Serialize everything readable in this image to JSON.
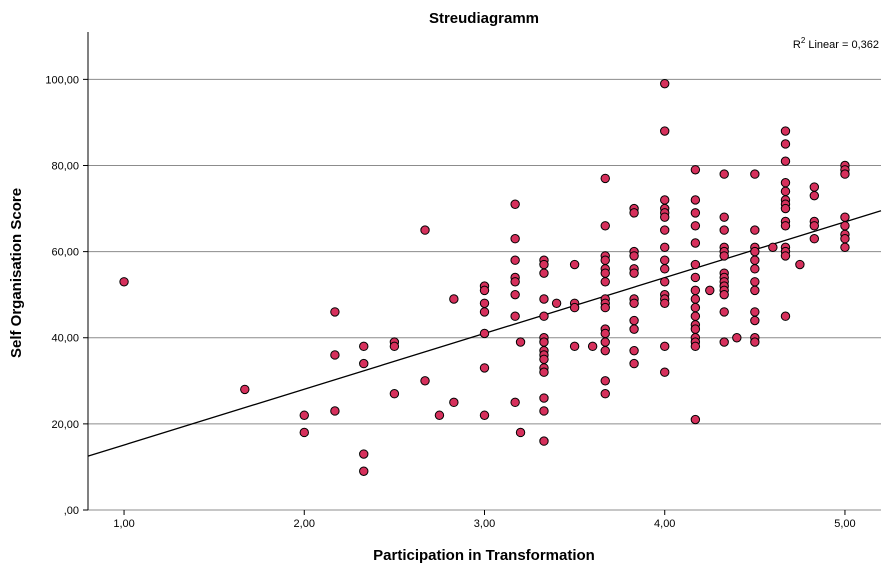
{
  "chart_data": {
    "type": "scatter",
    "title": "Streudiagramm",
    "xlabel": "Participation in Transformation",
    "ylabel": "Self Organisation Score",
    "xlim": [
      0.8,
      5.2
    ],
    "ylim": [
      0,
      111
    ],
    "x_ticks": [
      1,
      2,
      3,
      4,
      5
    ],
    "x_tick_labels": [
      "1,00",
      "2,00",
      "3,00",
      "4,00",
      "5,00"
    ],
    "y_ticks": [
      0,
      20,
      40,
      60,
      80,
      100
    ],
    "y_tick_labels": [
      ",00",
      "20,00",
      "40,00",
      "60,00",
      "80,00",
      "100,00"
    ],
    "grid": "horizontal",
    "fit_line": {
      "type": "linear",
      "x": [
        0.8,
        5.2
      ],
      "y": [
        12.5,
        69.5
      ],
      "label_prefix": "R",
      "label_sup": "2",
      "label_text": " Linear = 0,362"
    },
    "point_color": "#d6305c",
    "point_stroke": "#000000",
    "points": [
      [
        1.0,
        53
      ],
      [
        1.67,
        28
      ],
      [
        2.0,
        22
      ],
      [
        2.0,
        18
      ],
      [
        2.17,
        46
      ],
      [
        2.17,
        36
      ],
      [
        2.17,
        23
      ],
      [
        2.33,
        38
      ],
      [
        2.33,
        34
      ],
      [
        2.33,
        13
      ],
      [
        2.33,
        9
      ],
      [
        2.5,
        39
      ],
      [
        2.5,
        38
      ],
      [
        2.5,
        27
      ],
      [
        2.67,
        65
      ],
      [
        2.67,
        30
      ],
      [
        2.75,
        22
      ],
      [
        2.83,
        49
      ],
      [
        2.83,
        25
      ],
      [
        3.0,
        52
      ],
      [
        3.0,
        51
      ],
      [
        3.0,
        48
      ],
      [
        3.0,
        46
      ],
      [
        3.0,
        41
      ],
      [
        3.0,
        33
      ],
      [
        3.0,
        22
      ],
      [
        3.17,
        71
      ],
      [
        3.17,
        63
      ],
      [
        3.17,
        58
      ],
      [
        3.17,
        54
      ],
      [
        3.17,
        53
      ],
      [
        3.17,
        50
      ],
      [
        3.17,
        45
      ],
      [
        3.17,
        25
      ],
      [
        3.2,
        39
      ],
      [
        3.2,
        18
      ],
      [
        3.33,
        58
      ],
      [
        3.33,
        57
      ],
      [
        3.33,
        55
      ],
      [
        3.33,
        49
      ],
      [
        3.33,
        45
      ],
      [
        3.33,
        40
      ],
      [
        3.33,
        39
      ],
      [
        3.33,
        37
      ],
      [
        3.33,
        36
      ],
      [
        3.33,
        35
      ],
      [
        3.33,
        33
      ],
      [
        3.33,
        32
      ],
      [
        3.33,
        26
      ],
      [
        3.33,
        23
      ],
      [
        3.33,
        16
      ],
      [
        3.4,
        48
      ],
      [
        3.5,
        57
      ],
      [
        3.5,
        48
      ],
      [
        3.5,
        47
      ],
      [
        3.5,
        38
      ],
      [
        3.6,
        38
      ],
      [
        3.67,
        77
      ],
      [
        3.67,
        66
      ],
      [
        3.67,
        59
      ],
      [
        3.67,
        58
      ],
      [
        3.67,
        56
      ],
      [
        3.67,
        55
      ],
      [
        3.67,
        53
      ],
      [
        3.67,
        49
      ],
      [
        3.67,
        48
      ],
      [
        3.67,
        47
      ],
      [
        3.67,
        42
      ],
      [
        3.67,
        41
      ],
      [
        3.67,
        39
      ],
      [
        3.67,
        37
      ],
      [
        3.67,
        30
      ],
      [
        3.67,
        27
      ],
      [
        3.83,
        70
      ],
      [
        3.83,
        69
      ],
      [
        3.83,
        60
      ],
      [
        3.83,
        59
      ],
      [
        3.83,
        56
      ],
      [
        3.83,
        55
      ],
      [
        3.83,
        49
      ],
      [
        3.83,
        48
      ],
      [
        3.83,
        44
      ],
      [
        3.83,
        42
      ],
      [
        3.83,
        37
      ],
      [
        3.83,
        34
      ],
      [
        4.0,
        99
      ],
      [
        4.0,
        88
      ],
      [
        4.0,
        72
      ],
      [
        4.0,
        70
      ],
      [
        4.0,
        69
      ],
      [
        4.0,
        68
      ],
      [
        4.0,
        65
      ],
      [
        4.0,
        61
      ],
      [
        4.0,
        58
      ],
      [
        4.0,
        56
      ],
      [
        4.0,
        53
      ],
      [
        4.0,
        50
      ],
      [
        4.0,
        49
      ],
      [
        4.0,
        48
      ],
      [
        4.0,
        38
      ],
      [
        4.0,
        32
      ],
      [
        4.17,
        79
      ],
      [
        4.17,
        72
      ],
      [
        4.17,
        69
      ],
      [
        4.17,
        66
      ],
      [
        4.17,
        62
      ],
      [
        4.17,
        57
      ],
      [
        4.17,
        54
      ],
      [
        4.17,
        51
      ],
      [
        4.17,
        49
      ],
      [
        4.17,
        47
      ],
      [
        4.17,
        45
      ],
      [
        4.17,
        43
      ],
      [
        4.17,
        42
      ],
      [
        4.17,
        40
      ],
      [
        4.17,
        39
      ],
      [
        4.17,
        38
      ],
      [
        4.17,
        21
      ],
      [
        4.25,
        51
      ],
      [
        4.33,
        78
      ],
      [
        4.33,
        68
      ],
      [
        4.33,
        65
      ],
      [
        4.33,
        61
      ],
      [
        4.33,
        60
      ],
      [
        4.33,
        59
      ],
      [
        4.33,
        55
      ],
      [
        4.33,
        54
      ],
      [
        4.33,
        53
      ],
      [
        4.33,
        52
      ],
      [
        4.33,
        51
      ],
      [
        4.33,
        50
      ],
      [
        4.33,
        46
      ],
      [
        4.33,
        39
      ],
      [
        4.4,
        40
      ],
      [
        4.5,
        78
      ],
      [
        4.5,
        65
      ],
      [
        4.5,
        61
      ],
      [
        4.5,
        60
      ],
      [
        4.5,
        58
      ],
      [
        4.5,
        56
      ],
      [
        4.5,
        53
      ],
      [
        4.5,
        51
      ],
      [
        4.5,
        46
      ],
      [
        4.5,
        44
      ],
      [
        4.5,
        40
      ],
      [
        4.5,
        39
      ],
      [
        4.6,
        61
      ],
      [
        4.67,
        88
      ],
      [
        4.67,
        85
      ],
      [
        4.67,
        81
      ],
      [
        4.67,
        76
      ],
      [
        4.67,
        74
      ],
      [
        4.67,
        72
      ],
      [
        4.67,
        71
      ],
      [
        4.67,
        70
      ],
      [
        4.67,
        67
      ],
      [
        4.67,
        66
      ],
      [
        4.67,
        61
      ],
      [
        4.67,
        60
      ],
      [
        4.67,
        59
      ],
      [
        4.67,
        45
      ],
      [
        4.75,
        57
      ],
      [
        4.83,
        75
      ],
      [
        4.83,
        73
      ],
      [
        4.83,
        67
      ],
      [
        4.83,
        66
      ],
      [
        4.83,
        63
      ],
      [
        5.0,
        80
      ],
      [
        5.0,
        79
      ],
      [
        5.0,
        78
      ],
      [
        5.0,
        68
      ],
      [
        5.0,
        66
      ],
      [
        5.0,
        64
      ],
      [
        5.0,
        63
      ],
      [
        5.0,
        61
      ]
    ]
  }
}
